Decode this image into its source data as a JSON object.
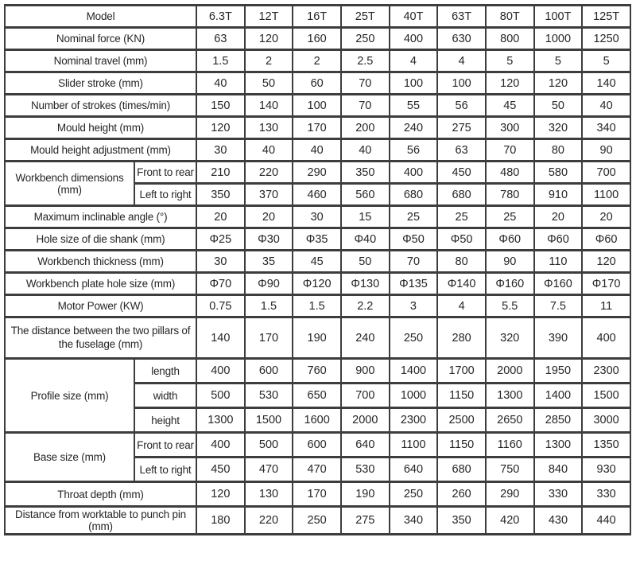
{
  "table": {
    "rows": [
      {
        "label": "Model",
        "values": [
          "6.3T",
          "12T",
          "16T",
          "25T",
          "40T",
          "63T",
          "80T",
          "100T",
          "125T"
        ]
      },
      {
        "label": "Nominal force (KN)",
        "values": [
          "63",
          "120",
          "160",
          "250",
          "400",
          "630",
          "800",
          "1000",
          "1250"
        ]
      },
      {
        "label": "Nominal travel (mm)",
        "values": [
          "1.5",
          "2",
          "2",
          "2.5",
          "4",
          "4",
          "5",
          "5",
          "5"
        ]
      },
      {
        "label": "Slider stroke (mm)",
        "values": [
          "40",
          "50",
          "60",
          "70",
          "100",
          "100",
          "120",
          "120",
          "140"
        ]
      },
      {
        "label": "Number of strokes (times/min)",
        "values": [
          "150",
          "140",
          "100",
          "70",
          "55",
          "56",
          "45",
          "50",
          "40"
        ]
      },
      {
        "label": "Mould height (mm)",
        "values": [
          "120",
          "130",
          "170",
          "200",
          "240",
          "275",
          "300",
          "320",
          "340"
        ]
      },
      {
        "label": "Mould height adjustment (mm)",
        "values": [
          "30",
          "40",
          "40",
          "40",
          "56",
          "63",
          "70",
          "80",
          "90"
        ]
      },
      {
        "group": {
          "label": "Workbench dimensions (mm)",
          "rowspan": 2
        },
        "sublabel": "Front to rear",
        "values": [
          "210",
          "220",
          "290",
          "350",
          "400",
          "450",
          "480",
          "580",
          "700"
        ]
      },
      {
        "sublabel": "Left to right",
        "values": [
          "350",
          "370",
          "460",
          "560",
          "680",
          "680",
          "780",
          "910",
          "1100"
        ]
      },
      {
        "label": "Maximum inclinable angle (°)",
        "values": [
          "20",
          "20",
          "30",
          "15",
          "25",
          "25",
          "25",
          "20",
          "20"
        ]
      },
      {
        "label": "Hole size of die shank (mm)",
        "values": [
          "Φ25",
          "Φ30",
          "Φ35",
          "Φ40",
          "Φ50",
          "Φ50",
          "Φ60",
          "Φ60",
          "Φ60"
        ]
      },
      {
        "label": "Workbench thickness (mm)",
        "values": [
          "30",
          "35",
          "45",
          "50",
          "70",
          "80",
          "90",
          "110",
          "120"
        ]
      },
      {
        "label": "Workbench plate hole size (mm)",
        "values": [
          "Φ70",
          "Φ90",
          "Φ120",
          "Φ130",
          "Φ135",
          "Φ140",
          "Φ160",
          "Φ160",
          "Φ170"
        ]
      },
      {
        "label": "Motor Power (KW)",
        "values": [
          "0.75",
          "1.5",
          "1.5",
          "2.2",
          "3",
          "4",
          "5.5",
          "7.5",
          "11"
        ]
      },
      {
        "label": "The distance between the two pillars of the fuselage (mm)",
        "values": [
          "140",
          "170",
          "190",
          "240",
          "250",
          "280",
          "320",
          "390",
          "400"
        ]
      },
      {
        "group": {
          "label": "Profile size (mm)",
          "rowspan": 3
        },
        "sublabel": "length",
        "values": [
          "400",
          "600",
          "760",
          "900",
          "1400",
          "1700",
          "2000",
          "1950",
          "2300"
        ]
      },
      {
        "sublabel": "width",
        "values": [
          "500",
          "530",
          "650",
          "700",
          "1000",
          "1150",
          "1300",
          "1400",
          "1500"
        ]
      },
      {
        "sublabel": "height",
        "values": [
          "1300",
          "1500",
          "1600",
          "2000",
          "2300",
          "2500",
          "2650",
          "2850",
          "3000"
        ]
      },
      {
        "group": {
          "label": "Base size (mm)",
          "rowspan": 2
        },
        "sublabel": "Front to rear",
        "values": [
          "400",
          "500",
          "600",
          "640",
          "1100",
          "1150",
          "1160",
          "1300",
          "1350"
        ]
      },
      {
        "sublabel": "Left to right",
        "values": [
          "450",
          "470",
          "470",
          "530",
          "640",
          "680",
          "750",
          "840",
          "930"
        ]
      },
      {
        "label": "Throat depth (mm)",
        "values": [
          "120",
          "130",
          "170",
          "190",
          "250",
          "260",
          "290",
          "330",
          "330"
        ]
      },
      {
        "label": "Distance from worktable to punch pin (mm)",
        "values": [
          "180",
          "220",
          "250",
          "275",
          "340",
          "350",
          "420",
          "430",
          "440"
        ]
      }
    ],
    "colors": {
      "border": "#3d3d3d",
      "text": "#262626",
      "background": "#ffffff"
    }
  }
}
